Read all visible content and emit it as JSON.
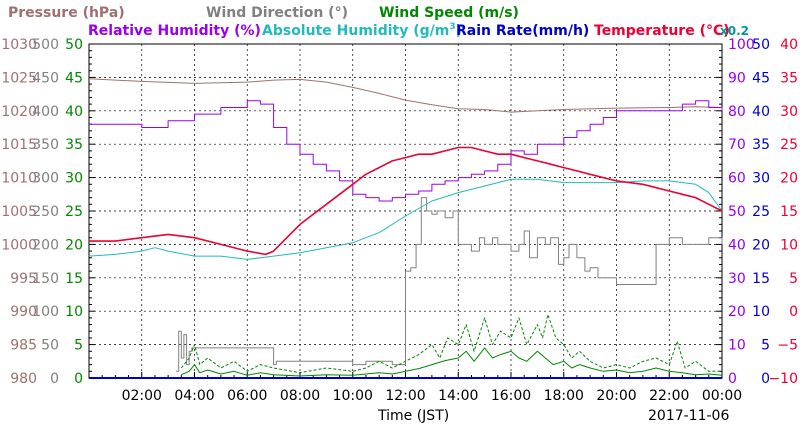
{
  "legend": {
    "pressure": "Pressure (hPa)",
    "wind_direction": "Wind Direction (°)",
    "wind_speed": "Wind Speed (m/s)",
    "relative_humidity": "Relative Humidity (%)",
    "absolute_humidity": "Absolute Humidity (g/m",
    "absolute_humidity_exp": "3",
    "absolute_humidity_close": ")",
    "rain_rate": "Rain Rate(mm/h)",
    "temperature": "Temperature (°C)",
    "multiplier": "x0.2"
  },
  "xlabel": "Time (JST)",
  "date": "2017-11-06",
  "colors": {
    "pressure": "#a07070",
    "wind_direction": "#808080",
    "wind_speed": "#008800",
    "relative_humidity": "#9900ee",
    "absolute_humidity": "#22bbbb",
    "rain_rate": "#0000cc",
    "temperature": "#ee0033",
    "multiplier": "#009999",
    "axis": "#000000"
  },
  "chart_data": {
    "type": "line",
    "x_unit": "hour",
    "xlim": [
      0,
      24
    ],
    "x_ticks": [
      {
        "x": 2,
        "label": "02:00"
      },
      {
        "x": 4,
        "label": "04:00"
      },
      {
        "x": 6,
        "label": "06:00"
      },
      {
        "x": 8,
        "label": "08:00"
      },
      {
        "x": 10,
        "label": "10:00"
      },
      {
        "x": 12,
        "label": "12:00"
      },
      {
        "x": 14,
        "label": "14:00"
      },
      {
        "x": 16,
        "label": "16:00"
      },
      {
        "x": 18,
        "label": "18:00"
      },
      {
        "x": 20,
        "label": "20:00"
      },
      {
        "x": 22,
        "label": "22:00"
      },
      {
        "x": 24,
        "label": "00:00"
      }
    ],
    "axes": {
      "pressure": {
        "ylim": [
          980,
          1030
        ],
        "ticks": [
          980,
          985,
          990,
          995,
          1000,
          1005,
          1010,
          1015,
          1020,
          1025,
          1030
        ]
      },
      "wind_direction": {
        "ylim": [
          0,
          500
        ],
        "ticks": [
          0,
          50,
          100,
          150,
          200,
          250,
          300,
          350,
          400,
          450,
          500
        ]
      },
      "wind_speed": {
        "ylim": [
          0,
          50
        ],
        "ticks": [
          0,
          5,
          10,
          15,
          20,
          25,
          30,
          35,
          40,
          45,
          50
        ]
      },
      "relative_humidity": {
        "ylim": [
          0,
          100
        ],
        "ticks": [
          0,
          10,
          20,
          30,
          40,
          50,
          60,
          70,
          80,
          90,
          100
        ]
      },
      "rain_rate": {
        "ylim": [
          0,
          50
        ],
        "ticks": [
          0,
          5,
          10,
          15,
          20,
          25,
          30,
          35,
          40,
          45,
          50
        ]
      },
      "temperature": {
        "ylim": [
          -10,
          40
        ],
        "ticks": [
          -10,
          -5,
          0,
          5,
          10,
          15,
          20,
          25,
          30,
          35,
          40
        ],
        "tick_labels": [
          "−10",
          "−5",
          "0",
          "5",
          "10",
          "15",
          "20",
          "25",
          "30",
          "35",
          "40"
        ]
      }
    },
    "series": [
      {
        "name": "Pressure (hPa)",
        "key": "pressure",
        "axis": "pressure",
        "x": [
          0,
          2,
          4,
          6,
          7,
          8,
          9,
          10,
          11,
          12,
          13,
          14,
          15,
          16,
          17,
          18,
          20,
          22,
          23,
          24
        ],
        "y": [
          1024.8,
          1024.4,
          1024.1,
          1024.3,
          1024.6,
          1024.7,
          1024.3,
          1023.5,
          1022.6,
          1021.6,
          1020.9,
          1020.3,
          1020.2,
          1019.8,
          1020.0,
          1020.2,
          1020.4,
          1020.5,
          1020.6,
          1020.5
        ]
      },
      {
        "name": "Wind Direction (°)",
        "key": "wind_direction",
        "axis": "wind_direction",
        "x": [
          3.3,
          3.4,
          3.5,
          3.6,
          3.7,
          3.8,
          3.9,
          4.0,
          5.0,
          6.0,
          6.9,
          7.0,
          7.1,
          8.0,
          9.0,
          9.9,
          10.0,
          10.5,
          11.0,
          11.5,
          11.9,
          12.0,
          12.2,
          12.4,
          12.6,
          12.8,
          13.0,
          13.2,
          13.5,
          13.8,
          14.0,
          14.2,
          14.5,
          14.8,
          15.0,
          15.3,
          15.5,
          15.8,
          16.0,
          16.3,
          16.5,
          16.7,
          17.0,
          17.3,
          17.5,
          17.8,
          18.0,
          18.2,
          18.5,
          18.8,
          19.0,
          19.3,
          19.5,
          20.0,
          20.5,
          21.0,
          21.3,
          21.5,
          22.0,
          22.5,
          23.0,
          23.5,
          24.0
        ],
        "y": [
          10,
          70,
          30,
          65,
          20,
          40,
          45,
          45,
          45,
          45,
          45,
          20,
          25,
          25,
          25,
          25,
          20,
          25,
          25,
          20,
          20,
          160,
          165,
          200,
          270,
          250,
          245,
          250,
          240,
          250,
          200,
          200,
          190,
          210,
          200,
          210,
          200,
          200,
          190,
          200,
          220,
          180,
          210,
          200,
          210,
          170,
          180,
          200,
          180,
          160,
          165,
          150,
          150,
          140,
          140,
          140,
          140,
          200,
          210,
          200,
          200,
          210,
          200
        ]
      },
      {
        "name": "Wind Speed (m/s)",
        "key": "wind_speed",
        "axis": "wind_speed",
        "x": [
          3.5,
          3.8,
          4.0,
          4.2,
          4.5,
          5.0,
          5.5,
          6.0,
          6.5,
          7.0,
          8.0,
          9.0,
          10.0,
          10.5,
          11.0,
          11.5,
          12.0,
          12.5,
          13.0,
          13.5,
          14.0,
          14.3,
          14.6,
          15.0,
          15.3,
          15.6,
          16.0,
          16.3,
          16.6,
          17.0,
          17.3,
          17.6,
          18.0,
          18.3,
          18.6,
          19.0,
          19.5,
          20.0,
          20.5,
          21.0,
          21.5,
          22.0,
          22.5,
          23.0,
          23.5,
          24.0
        ],
        "y": [
          0.5,
          1.0,
          2.0,
          0.8,
          1.2,
          0.6,
          1.0,
          0.4,
          0.8,
          0.5,
          0.3,
          0.5,
          0.4,
          0.6,
          0.8,
          0.6,
          1.0,
          1.4,
          2.0,
          2.6,
          3.0,
          4.0,
          2.5,
          4.5,
          3.0,
          3.5,
          4.0,
          3.0,
          2.5,
          4.0,
          3.0,
          2.0,
          2.5,
          1.5,
          2.0,
          1.5,
          1.0,
          1.2,
          0.8,
          1.0,
          1.5,
          1.0,
          0.8,
          0.5,
          0.6,
          0.4
        ]
      },
      {
        "name": "Wind Speed gust (m/s)",
        "key": "wind_gust",
        "axis": "wind_speed",
        "x": [
          3.5,
          3.8,
          4.0,
          4.2,
          4.5,
          5.0,
          5.5,
          6.0,
          6.5,
          7.0,
          8.0,
          9.0,
          10.0,
          10.5,
          11.0,
          11.5,
          12.0,
          12.5,
          13.0,
          13.3,
          13.6,
          14.0,
          14.3,
          14.6,
          15.0,
          15.3,
          15.6,
          16.0,
          16.3,
          16.6,
          17.0,
          17.2,
          17.4,
          17.7,
          18.0,
          18.3,
          18.6,
          19.0,
          19.5,
          20.0,
          20.5,
          21.0,
          21.5,
          22.0,
          22.3,
          22.6,
          23.0,
          23.5,
          24.0
        ],
        "y": [
          1.5,
          3.0,
          5.0,
          2.0,
          3.0,
          1.5,
          2.5,
          1.0,
          2.0,
          1.5,
          0.8,
          1.5,
          1.0,
          1.5,
          2.5,
          1.5,
          2.5,
          3.5,
          5.0,
          3.0,
          6.0,
          5.0,
          8.0,
          4.0,
          9.0,
          5.0,
          7.0,
          6.0,
          9.0,
          5.0,
          8.0,
          6.0,
          9.5,
          6.0,
          5.0,
          3.0,
          4.0,
          2.5,
          1.5,
          2.0,
          1.5,
          2.5,
          3.0,
          2.0,
          5.5,
          1.5,
          2.5,
          1.0,
          1.0
        ]
      },
      {
        "name": "Relative Humidity (%)",
        "key": "relative_humidity",
        "axis": "relative_humidity",
        "x": [
          0,
          1,
          2,
          3,
          4,
          5,
          6,
          6.5,
          7,
          7.5,
          8,
          8.5,
          9,
          9.5,
          10,
          10.5,
          11,
          11.5,
          12,
          12.5,
          13,
          13.5,
          14,
          14.5,
          15,
          15.5,
          16,
          16.5,
          17,
          17.5,
          18,
          18.5,
          19,
          19.5,
          20,
          21,
          22,
          22.5,
          23,
          23.5,
          24
        ],
        "y": [
          76,
          76,
          75,
          77,
          79,
          81,
          83,
          82,
          75,
          70,
          67,
          64,
          62,
          59,
          55,
          54,
          53,
          54,
          55,
          56,
          58,
          59,
          60,
          61,
          62,
          64,
          68,
          67,
          70,
          70,
          72,
          74,
          76,
          78,
          80,
          80,
          80,
          82,
          83,
          81,
          80
        ]
      },
      {
        "name": "Absolute Humidity (g/m3)",
        "key": "absolute_humidity",
        "axis": "relative_humidity",
        "x": [
          0,
          1,
          2,
          2.5,
          3,
          4,
          5,
          6,
          7,
          8,
          9,
          10,
          11,
          12,
          13,
          14,
          15,
          16,
          17,
          18,
          19,
          20,
          21,
          22,
          23,
          23.5,
          24
        ],
        "y": [
          36.5,
          37.0,
          38.0,
          39.0,
          38.0,
          36.5,
          36.5,
          35.5,
          36.5,
          37.5,
          39.0,
          40.5,
          43.5,
          48.5,
          53.0,
          55.5,
          57.5,
          59.5,
          59.5,
          58.5,
          58.5,
          58.5,
          59.0,
          59.0,
          58.0,
          55.5,
          50.0
        ]
      },
      {
        "name": "Rain Rate(mm/h)",
        "key": "rain_rate",
        "axis": "rain_rate",
        "x": [
          0,
          24
        ],
        "y": [
          0,
          0
        ]
      },
      {
        "name": "Temperature (°C)",
        "key": "temperature",
        "axis": "temperature",
        "x": [
          0,
          1,
          2,
          3,
          4,
          5,
          6,
          6.7,
          7,
          7.5,
          8,
          8.5,
          9,
          9.5,
          10,
          10.5,
          11,
          11.5,
          12,
          12.5,
          13,
          13.5,
          14,
          14.5,
          15,
          15.5,
          16,
          16.5,
          17,
          17.5,
          18,
          18.5,
          19,
          19.5,
          20,
          21,
          22,
          22.5,
          23,
          23.5,
          24
        ],
        "y": [
          10.5,
          10.5,
          11.0,
          11.5,
          11.0,
          10.0,
          9.0,
          8.5,
          9.0,
          11.0,
          13.0,
          14.5,
          16.0,
          17.5,
          19.0,
          20.5,
          21.5,
          22.5,
          23.0,
          23.5,
          23.5,
          24.0,
          24.5,
          24.5,
          24.0,
          23.5,
          23.5,
          23.0,
          22.5,
          22.0,
          21.5,
          21.0,
          20.5,
          20.0,
          19.5,
          19.0,
          18.0,
          17.5,
          17.0,
          16.0,
          15.0
        ]
      }
    ]
  }
}
